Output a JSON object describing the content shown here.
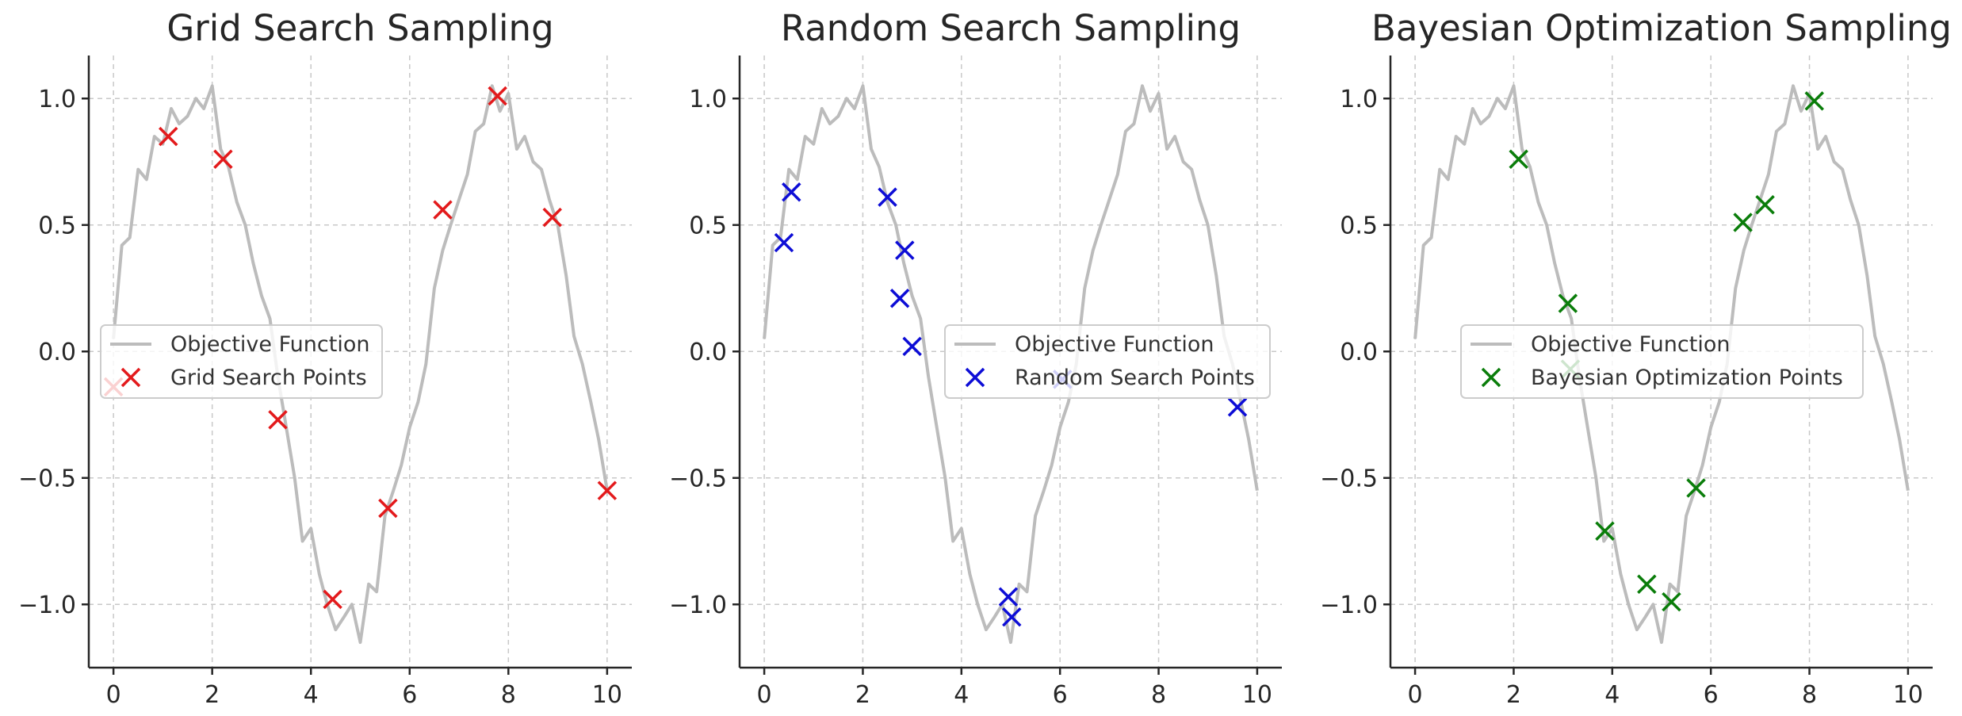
{
  "chart_data": [
    {
      "type": "line+scatter",
      "title": "Grid Search Sampling",
      "xlim": [
        -0.5,
        10.5
      ],
      "ylim": [
        -1.25,
        1.17
      ],
      "xticks": [
        0,
        2,
        4,
        6,
        8,
        10
      ],
      "yticks": [
        -1.0,
        -0.5,
        0.0,
        0.5,
        1.0
      ],
      "xtick_labels": [
        "0",
        "2",
        "4",
        "6",
        "8",
        "10"
      ],
      "ytick_labels": [
        "−1.0",
        "−0.5",
        "0.0",
        "0.5",
        "1.0"
      ],
      "grid": true,
      "legend_placement": "center-left",
      "series": [
        {
          "name": "Objective Function",
          "kind": "line",
          "color": "#bcbcbc",
          "x": [
            0.0,
            0.17,
            0.33,
            0.5,
            0.67,
            0.83,
            1.0,
            1.17,
            1.33,
            1.5,
            1.67,
            1.83,
            2.0,
            2.17,
            2.33,
            2.5,
            2.67,
            2.83,
            3.0,
            3.17,
            3.33,
            3.5,
            3.67,
            3.83,
            4.0,
            4.17,
            4.33,
            4.5,
            4.67,
            4.83,
            5.0,
            5.17,
            5.33,
            5.5,
            5.67,
            5.83,
            6.0,
            6.17,
            6.33,
            6.5,
            6.67,
            6.83,
            7.0,
            7.17,
            7.33,
            7.5,
            7.67,
            7.83,
            8.0,
            8.17,
            8.33,
            8.5,
            8.67,
            8.83,
            9.0,
            9.17,
            9.33,
            9.5,
            9.67,
            9.83,
            10.0
          ],
          "y": [
            0.05,
            0.42,
            0.45,
            0.72,
            0.68,
            0.85,
            0.82,
            0.96,
            0.9,
            0.93,
            1.0,
            0.96,
            1.05,
            0.8,
            0.73,
            0.59,
            0.5,
            0.35,
            0.22,
            0.13,
            -0.1,
            -0.3,
            -0.5,
            -0.75,
            -0.7,
            -0.88,
            -1.0,
            -1.1,
            -1.05,
            -1.0,
            -1.15,
            -0.92,
            -0.95,
            -0.65,
            -0.55,
            -0.45,
            -0.3,
            -0.2,
            -0.05,
            0.25,
            0.4,
            0.5,
            0.6,
            0.7,
            0.87,
            0.9,
            1.05,
            0.95,
            1.02,
            0.8,
            0.85,
            0.75,
            0.72,
            0.6,
            0.5,
            0.3,
            0.06,
            -0.05,
            -0.2,
            -0.35,
            -0.55
          ]
        },
        {
          "name": "Grid Search Points",
          "kind": "scatter",
          "marker": "x",
          "color": "#e31a1c",
          "x": [
            0.0,
            1.11,
            2.22,
            3.33,
            4.44,
            5.56,
            6.67,
            7.78,
            8.89,
            10.0
          ],
          "y": [
            -0.14,
            0.85,
            0.76,
            -0.27,
            -0.98,
            -0.62,
            0.56,
            1.01,
            0.53,
            -0.55
          ]
        }
      ]
    },
    {
      "type": "line+scatter",
      "title": "Random Search Sampling",
      "xlim": [
        -0.5,
        10.5
      ],
      "ylim": [
        -1.25,
        1.17
      ],
      "xticks": [
        0,
        2,
        4,
        6,
        8,
        10
      ],
      "yticks": [
        -1.0,
        -0.5,
        0.0,
        0.5,
        1.0
      ],
      "xtick_labels": [
        "0",
        "2",
        "4",
        "6",
        "8",
        "10"
      ],
      "ytick_labels": [
        "−1.0",
        "−0.5",
        "0.0",
        "0.5",
        "1.0"
      ],
      "grid": true,
      "legend_placement": "center-right",
      "series": [
        {
          "name": "Objective Function",
          "kind": "line",
          "color": "#bcbcbc",
          "x": [
            0.0,
            0.17,
            0.33,
            0.5,
            0.67,
            0.83,
            1.0,
            1.17,
            1.33,
            1.5,
            1.67,
            1.83,
            2.0,
            2.17,
            2.33,
            2.5,
            2.67,
            2.83,
            3.0,
            3.17,
            3.33,
            3.5,
            3.67,
            3.83,
            4.0,
            4.17,
            4.33,
            4.5,
            4.67,
            4.83,
            5.0,
            5.17,
            5.33,
            5.5,
            5.67,
            5.83,
            6.0,
            6.17,
            6.33,
            6.5,
            6.67,
            6.83,
            7.0,
            7.17,
            7.33,
            7.5,
            7.67,
            7.83,
            8.0,
            8.17,
            8.33,
            8.5,
            8.67,
            8.83,
            9.0,
            9.17,
            9.33,
            9.5,
            9.67,
            9.83,
            10.0
          ],
          "y": [
            0.05,
            0.42,
            0.45,
            0.72,
            0.68,
            0.85,
            0.82,
            0.96,
            0.9,
            0.93,
            1.0,
            0.96,
            1.05,
            0.8,
            0.73,
            0.59,
            0.5,
            0.35,
            0.22,
            0.13,
            -0.1,
            -0.3,
            -0.5,
            -0.75,
            -0.7,
            -0.88,
            -1.0,
            -1.1,
            -1.05,
            -1.0,
            -1.15,
            -0.92,
            -0.95,
            -0.65,
            -0.55,
            -0.45,
            -0.3,
            -0.2,
            -0.05,
            0.25,
            0.4,
            0.5,
            0.6,
            0.7,
            0.87,
            0.9,
            1.05,
            0.95,
            1.02,
            0.8,
            0.85,
            0.75,
            0.72,
            0.6,
            0.5,
            0.3,
            0.06,
            -0.05,
            -0.2,
            -0.35,
            -0.55
          ]
        },
        {
          "name": "Random Search Points",
          "kind": "scatter",
          "marker": "x",
          "color": "#0d0dd6",
          "x": [
            0.4,
            0.55,
            2.5,
            2.75,
            2.85,
            3.0,
            4.95,
            5.02,
            6.05,
            9.6
          ],
          "y": [
            0.43,
            0.63,
            0.61,
            0.21,
            0.4,
            0.02,
            -0.97,
            -1.05,
            -0.11,
            -0.22
          ]
        }
      ]
    },
    {
      "type": "line+scatter",
      "title": "Bayesian Optimization Sampling",
      "xlim": [
        -0.5,
        10.5
      ],
      "ylim": [
        -1.25,
        1.17
      ],
      "xticks": [
        0,
        2,
        4,
        6,
        8,
        10
      ],
      "yticks": [
        -1.0,
        -0.5,
        0.0,
        0.5,
        1.0
      ],
      "xtick_labels": [
        "0",
        "2",
        "4",
        "6",
        "8",
        "10"
      ],
      "ytick_labels": [
        "−1.0",
        "−0.5",
        "0.0",
        "0.5",
        "1.0"
      ],
      "grid": true,
      "legend_placement": "center",
      "series": [
        {
          "name": "Objective Function",
          "kind": "line",
          "color": "#bcbcbc",
          "x": [
            0.0,
            0.17,
            0.33,
            0.5,
            0.67,
            0.83,
            1.0,
            1.17,
            1.33,
            1.5,
            1.67,
            1.83,
            2.0,
            2.17,
            2.33,
            2.5,
            2.67,
            2.83,
            3.0,
            3.17,
            3.33,
            3.5,
            3.67,
            3.83,
            4.0,
            4.17,
            4.33,
            4.5,
            4.67,
            4.83,
            5.0,
            5.17,
            5.33,
            5.5,
            5.67,
            5.83,
            6.0,
            6.17,
            6.33,
            6.5,
            6.67,
            6.83,
            7.0,
            7.17,
            7.33,
            7.5,
            7.67,
            7.83,
            8.0,
            8.17,
            8.33,
            8.5,
            8.67,
            8.83,
            9.0,
            9.17,
            9.33,
            9.5,
            9.67,
            9.83,
            10.0
          ],
          "y": [
            0.05,
            0.42,
            0.45,
            0.72,
            0.68,
            0.85,
            0.82,
            0.96,
            0.9,
            0.93,
            1.0,
            0.96,
            1.05,
            0.8,
            0.73,
            0.59,
            0.5,
            0.35,
            0.22,
            0.13,
            -0.1,
            -0.3,
            -0.5,
            -0.75,
            -0.7,
            -0.88,
            -1.0,
            -1.1,
            -1.05,
            -1.0,
            -1.15,
            -0.92,
            -0.95,
            -0.65,
            -0.55,
            -0.45,
            -0.3,
            -0.2,
            -0.05,
            0.25,
            0.4,
            0.5,
            0.6,
            0.7,
            0.87,
            0.9,
            1.05,
            0.95,
            1.02,
            0.8,
            0.85,
            0.75,
            0.72,
            0.6,
            0.5,
            0.3,
            0.06,
            -0.05,
            -0.2,
            -0.35,
            -0.55
          ]
        },
        {
          "name": "Bayesian Optimization Points",
          "kind": "scatter",
          "marker": "x",
          "color": "#0a7d0a",
          "x": [
            2.1,
            3.1,
            3.15,
            3.85,
            4.7,
            5.2,
            5.7,
            6.65,
            7.1,
            8.1
          ],
          "y": [
            0.76,
            0.19,
            -0.07,
            -0.71,
            -0.92,
            -0.99,
            -0.54,
            0.51,
            0.58,
            0.99
          ]
        }
      ]
    }
  ]
}
